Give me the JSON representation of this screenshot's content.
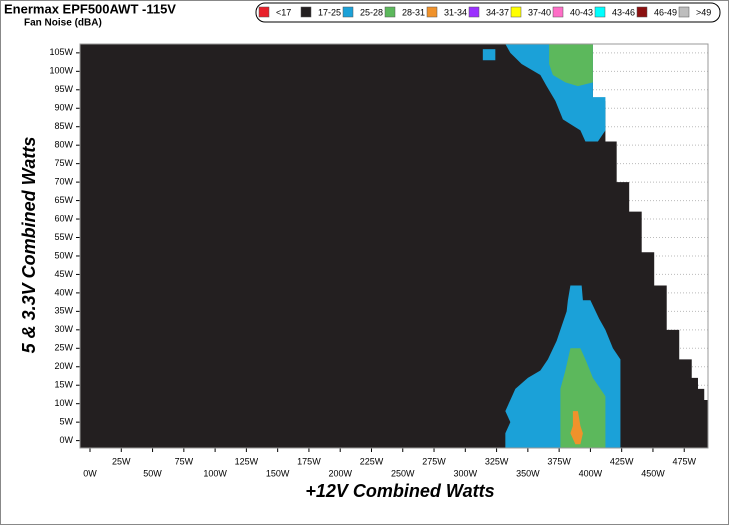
{
  "chart_data": {
    "type": "region-map",
    "title": "Enermax EPF500AWT -115V",
    "subtitle": "Fan Noise (dBA)",
    "x_label": "+12V Combined Watts",
    "y_label": "5 & 3.3V Combined Watts",
    "xlim": [
      -8,
      494
    ],
    "ylim": [
      -2,
      107.4
    ],
    "xticks": [
      {
        "value": 0,
        "label": "0W"
      },
      {
        "value": 25,
        "label": "25W"
      },
      {
        "value": 50,
        "label": "50W"
      },
      {
        "value": 75,
        "label": "75W"
      },
      {
        "value": 100,
        "label": "100W"
      },
      {
        "value": 125,
        "label": "125W"
      },
      {
        "value": 150,
        "label": "150W"
      },
      {
        "value": 175,
        "label": "175W"
      },
      {
        "value": 200,
        "label": "200W"
      },
      {
        "value": 225,
        "label": "225W"
      },
      {
        "value": 250,
        "label": "250W"
      },
      {
        "value": 275,
        "label": "275W"
      },
      {
        "value": 300,
        "label": "300W"
      },
      {
        "value": 325,
        "label": "325W"
      },
      {
        "value": 350,
        "label": "350W"
      },
      {
        "value": 375,
        "label": "375W"
      },
      {
        "value": 400,
        "label": "400W"
      },
      {
        "value": 425,
        "label": "425W"
      },
      {
        "value": 450,
        "label": "450W"
      },
      {
        "value": 475,
        "label": "475W"
      }
    ],
    "yticks": [
      {
        "value": 0,
        "label": "0W"
      },
      {
        "value": 5,
        "label": "5W"
      },
      {
        "value": 10,
        "label": "10W"
      },
      {
        "value": 15,
        "label": "15W"
      },
      {
        "value": 20,
        "label": "20W"
      },
      {
        "value": 25,
        "label": "25W"
      },
      {
        "value": 30,
        "label": "30W"
      },
      {
        "value": 35,
        "label": "35W"
      },
      {
        "value": 40,
        "label": "40W"
      },
      {
        "value": 45,
        "label": "45W"
      },
      {
        "value": 50,
        "label": "50W"
      },
      {
        "value": 55,
        "label": "55W"
      },
      {
        "value": 60,
        "label": "60W"
      },
      {
        "value": 65,
        "label": "65W"
      },
      {
        "value": 70,
        "label": "70W"
      },
      {
        "value": 75,
        "label": "75W"
      },
      {
        "value": 80,
        "label": "80W"
      },
      {
        "value": 85,
        "label": "85W"
      },
      {
        "value": 90,
        "label": "90W"
      },
      {
        "value": 95,
        "label": "95W"
      },
      {
        "value": 100,
        "label": "100W"
      },
      {
        "value": 105,
        "label": "105W"
      }
    ],
    "grid": true,
    "series": [
      {
        "name": "<17",
        "color": "#e8202a",
        "regions": []
      },
      {
        "name": "17-25",
        "color": "#231f20",
        "regions": [
          {
            "x": [
              -8,
              402,
              402,
              412,
              412,
              421,
              421,
              431,
              431,
              441,
              441,
              451,
              451,
              461,
              461,
              471,
              471,
              481,
              481,
              486,
              486,
              491,
              491,
              494,
              494,
              -8
            ],
            "y": [
              107.4,
              107.4,
              92,
              92,
              81,
              81,
              70,
              70,
              62,
              62,
              51,
              51,
              42,
              42,
              30,
              30,
              22,
              22,
              17,
              17,
              14,
              14,
              11,
              11,
              -2,
              -2
            ]
          }
        ]
      },
      {
        "name": "25-28",
        "color": "#1ba1d8",
        "regions": [
          {
            "x": [
              332,
              402,
              402,
              412,
              412,
              406,
              396,
              392,
              378,
              372,
              365,
              360,
              345,
              336
            ],
            "y": [
              107.4,
              107.4,
              93,
              93,
              84,
              81,
              81,
              84,
              87,
              92,
              96,
              99,
              102,
              105
            ]
          },
          {
            "x": [
              314,
              324,
              324,
              314
            ],
            "y": [
              103,
              103,
              106,
              106
            ]
          },
          {
            "x": [
              384,
              393,
              394,
              400,
              407,
              412,
              418,
              424,
              424,
              332,
              332,
              336,
              332,
              336,
              340,
              350,
              360,
              366,
              373,
              377,
              381,
              382
            ],
            "y": [
              42,
              42,
              38,
              38,
              33,
              30,
              25,
              22,
              -2,
              -2,
              2,
              5,
              8,
              11,
              14,
              17,
              19,
              22,
              27,
              31,
              35,
              38
            ]
          }
        ]
      },
      {
        "name": "28-31",
        "color": "#5cb85c",
        "regions": [
          {
            "x": [
              367,
              402,
              402,
              390,
              380,
              370,
              367
            ],
            "y": [
              107.4,
              107.4,
              97,
              96,
              97,
              99,
              102
            ]
          },
          {
            "x": [
              384,
              392,
              396,
              402,
              412,
              412,
              376,
              376,
              380,
              382
            ],
            "y": [
              25,
              25,
              22,
              17,
              12,
              -2,
              -2,
              14,
              19,
              22
            ]
          }
        ]
      },
      {
        "name": "31-34",
        "color": "#f0922b",
        "regions": [
          {
            "x": [
              386,
              390,
              392,
              394,
              392,
              388,
              384,
              386
            ],
            "y": [
              8,
              8,
              4,
              2,
              -1,
              -1,
              2,
              4
            ]
          }
        ]
      },
      {
        "name": "34-37",
        "color": "#9b30ff",
        "regions": []
      },
      {
        "name": "37-40",
        "color": "#ffff00",
        "regions": []
      },
      {
        "name": "40-43",
        "color": "#ff6ec7",
        "regions": []
      },
      {
        "name": "43-46",
        "color": "#00ffff",
        "regions": []
      },
      {
        "name": "46-49",
        "color": "#8b1010",
        "regions": []
      },
      {
        "name": ">49",
        "color": "#bdbdbd",
        "regions": []
      }
    ]
  }
}
